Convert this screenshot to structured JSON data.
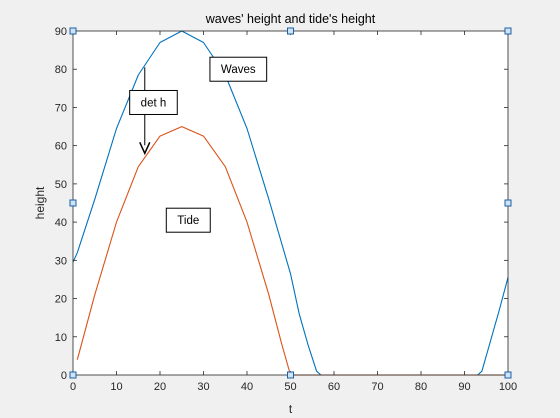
{
  "chart_data": {
    "type": "line",
    "title": "waves' height  and tide's height",
    "xlabel": "t",
    "ylabel": "height",
    "xlim": [
      0,
      100
    ],
    "ylim": [
      0,
      90
    ],
    "xticks": [
      0,
      10,
      20,
      30,
      40,
      50,
      60,
      70,
      80,
      90,
      100
    ],
    "yticks": [
      0,
      10,
      20,
      30,
      40,
      50,
      60,
      70,
      80,
      90
    ],
    "grid": false,
    "legend": "none",
    "series": [
      {
        "color": "#0072BD",
        "x": [
          0,
          1,
          5,
          10,
          15,
          20,
          25,
          30,
          35,
          40,
          45,
          50,
          52,
          54,
          56,
          57,
          60,
          70,
          80,
          90,
          93,
          94,
          96,
          98,
          100
        ],
        "y": [
          29.5,
          32,
          46,
          64.5,
          78.5,
          87,
          90,
          87,
          78.5,
          64.5,
          46,
          26.5,
          16,
          8,
          1,
          0,
          0,
          0,
          0,
          0,
          0,
          1,
          9,
          17,
          25.5
        ]
      },
      {
        "color": "#D95319",
        "x": [
          1,
          5,
          10,
          15,
          20,
          25,
          30,
          35,
          40,
          45,
          48,
          50,
          55,
          60,
          70,
          80,
          90,
          100
        ],
        "y": [
          4,
          21,
          40,
          54.5,
          62.5,
          65,
          62.5,
          54.5,
          40,
          21,
          8,
          0,
          0,
          0,
          0,
          0,
          0,
          0
        ]
      }
    ],
    "annotations": [
      {
        "kind": "arrow",
        "x": 16.5,
        "y1": 80.5,
        "y2": 58
      },
      {
        "kind": "textbox",
        "text": "Waves",
        "x": 38,
        "y": 80
      },
      {
        "kind": "textbox",
        "text": "det h",
        "x": 18.5,
        "y": 71.3
      },
      {
        "kind": "textbox",
        "text": "Tide",
        "x": 26.5,
        "y": 40.5
      }
    ],
    "selection_handles": true
  }
}
